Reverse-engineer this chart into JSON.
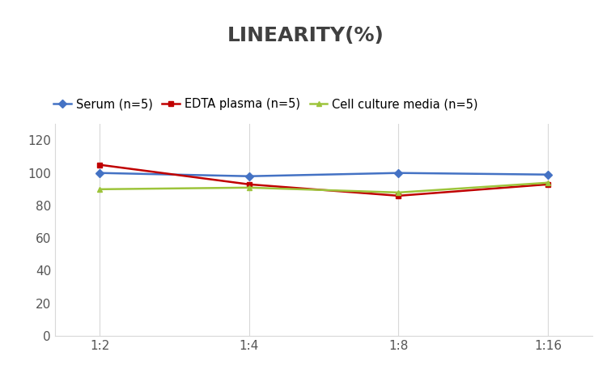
{
  "title": "LINEARITY(%)",
  "x_labels": [
    "1:2",
    "1:4",
    "1:8",
    "1:16"
  ],
  "x_positions": [
    0,
    1,
    2,
    3
  ],
  "series": [
    {
      "label": "Serum (n=5)",
      "values": [
        100,
        98,
        100,
        99
      ],
      "color": "#4472C4",
      "marker": "D",
      "markersize": 5,
      "linewidth": 1.8
    },
    {
      "label": "EDTA plasma (n=5)",
      "values": [
        105,
        93,
        86,
        93
      ],
      "color": "#C00000",
      "marker": "s",
      "markersize": 5,
      "linewidth": 1.8
    },
    {
      "label": "Cell culture media (n=5)",
      "values": [
        90,
        91,
        88,
        94
      ],
      "color": "#9DC43B",
      "marker": "^",
      "markersize": 5,
      "linewidth": 1.8
    }
  ],
  "ylim": [
    0,
    130
  ],
  "yticks": [
    0,
    20,
    40,
    60,
    80,
    100,
    120
  ],
  "background_color": "#FFFFFF",
  "title_fontsize": 18,
  "legend_fontsize": 10.5,
  "tick_fontsize": 11,
  "grid_color": "#D8D8D8",
  "title_color": "#404040"
}
